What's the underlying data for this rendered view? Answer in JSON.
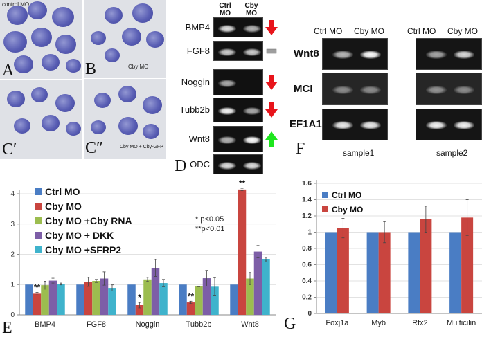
{
  "panels": {
    "photos": {
      "a": {
        "letter": "A",
        "caption": "control MO"
      },
      "b": {
        "letter": "B",
        "caption": "Cby MO"
      },
      "c1": {
        "letter": "C′",
        "caption": ""
      },
      "c2": {
        "letter": "C″",
        "caption": "Cby MO + Cby-GFP"
      }
    },
    "d": {
      "letter": "D",
      "headers": [
        "Ctrl\nMO",
        "Cby\nMO"
      ],
      "rows": [
        {
          "label": "BMP4",
          "ctrl": 0.8,
          "cby": 0.55,
          "change": "down",
          "arrow_color": "#e8141b"
        },
        {
          "label": "FGF8",
          "ctrl": 0.7,
          "cby": 0.7,
          "change": "none",
          "arrow_color": "#9e9e9e"
        },
        {
          "label": "Noggin",
          "ctrl": 0.5,
          "cby": 0.0,
          "change": "down",
          "arrow_color": "#e8141b"
        },
        {
          "label": "Tubb2b",
          "ctrl": 0.95,
          "cby": 0.5,
          "change": "down",
          "arrow_color": "#e8141b"
        },
        {
          "label": "Wnt8",
          "ctrl": 0.55,
          "cby": 1.0,
          "change": "up",
          "arrow_color": "#1ee61e"
        },
        {
          "label": "ODC",
          "ctrl": 0.8,
          "cby": 0.8,
          "change": "",
          "arrow_color": ""
        }
      ]
    },
    "f": {
      "letter": "F",
      "headers": [
        "Ctrl MO",
        "Cby MO"
      ],
      "row_labels": [
        "Wnt8",
        "MCI",
        "EF1A1"
      ],
      "samples": [
        {
          "name": "sample1",
          "bands": [
            [
              0.6,
              1.0
            ],
            [
              0.3,
              0.3
            ],
            [
              0.9,
              0.9
            ]
          ]
        },
        {
          "name": "sample2",
          "bands": [
            [
              0.5,
              0.8
            ],
            [
              0.35,
              0.3
            ],
            [
              0.95,
              0.95
            ]
          ]
        }
      ]
    }
  },
  "chart_data": [
    {
      "panel_letter": "E",
      "type": "bar",
      "categories": [
        "BMP4",
        "FGF8",
        "Noggin",
        "Tubb2b",
        "Wnt8"
      ],
      "ylim": [
        0,
        4.3
      ],
      "yticks": [
        "0",
        "1",
        "2",
        "3",
        "4"
      ],
      "grid": true,
      "legend": "top-left",
      "series": [
        {
          "name": "Ctrl MO",
          "color": "#4a7dc4",
          "values": [
            1,
            1,
            1,
            1,
            1
          ],
          "errors": [
            0,
            0,
            0,
            0,
            0
          ]
        },
        {
          "name": "Cby MO",
          "color": "#c9453f",
          "values": [
            0.7,
            1.09,
            0.32,
            0.41,
            4.14
          ],
          "errors": [
            0.04,
            0.15,
            0.09,
            0.04,
            0.04
          ]
        },
        {
          "name": "Cby MO +Cby RNA",
          "color": "#9cbd4f",
          "values": [
            0.98,
            1.12,
            1.17,
            0.94,
            1.2
          ],
          "errors": [
            0.13,
            0.05,
            0.07,
            0.01,
            0.2
          ]
        },
        {
          "name": "Cby MO + DKK",
          "color": "#7d5ea7",
          "values": [
            1.13,
            1.2,
            1.55,
            1.21,
            2.09
          ],
          "errors": [
            0.08,
            0.22,
            0.28,
            0.26,
            0.2
          ]
        },
        {
          "name": "Cby MO +SFRP2",
          "color": "#3fb3cc",
          "values": [
            1.02,
            0.89,
            1.05,
            0.93,
            1.84
          ],
          "errors": [
            0.03,
            0.1,
            0.12,
            0.3,
            0.06
          ]
        }
      ],
      "significance": [
        {
          "category": "BMP4",
          "series": "Cby MO",
          "mark": "**"
        },
        {
          "category": "Noggin",
          "series": "Cby MO",
          "mark": "*"
        },
        {
          "category": "Tubb2b",
          "series": "Cby MO",
          "mark": "**"
        },
        {
          "category": "Wnt8",
          "series": "Cby MO",
          "mark": "**"
        }
      ],
      "annotations": [
        "* p<0.05",
        "**p<0.01"
      ]
    },
    {
      "panel_letter": "G",
      "type": "bar",
      "categories": [
        "Foxj1a",
        "Myb",
        "Rfx2",
        "Multicilin"
      ],
      "ylim": [
        0,
        1.6
      ],
      "yticks": [
        "0",
        "0.2",
        "0.4",
        "0.6",
        "0.8",
        "1",
        "1.2",
        "1.4",
        "1.6"
      ],
      "grid": true,
      "legend": "top-left",
      "series": [
        {
          "name": "Ctrl MO",
          "color": "#4a7dc4",
          "values": [
            1,
            1,
            1,
            1
          ],
          "errors": [
            0,
            0,
            0,
            0
          ]
        },
        {
          "name": "Cby MO",
          "color": "#c9453f",
          "values": [
            1.05,
            1.0,
            1.16,
            1.18
          ],
          "errors": [
            0.12,
            0.13,
            0.16,
            0.22
          ]
        }
      ]
    }
  ]
}
